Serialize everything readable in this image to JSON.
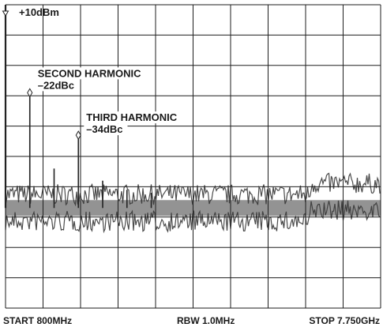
{
  "chart_data": {
    "type": "line",
    "title": "",
    "reference_level_label": "+10dBm",
    "x_unit": "GHz",
    "y_unit": "dBm",
    "xlim": [
      0.8,
      7.75
    ],
    "ylim": [
      -90,
      10
    ],
    "grid": true,
    "grid_divisions": {
      "x": 10,
      "y": 10
    },
    "noise_floor_dbm": -57,
    "series": [
      {
        "values": [
          {
            "x": 0.8,
            "y": 10
          },
          {
            "x": 1.25,
            "y": -19
          },
          {
            "x": 1.7,
            "y": -44
          },
          {
            "x": 2.15,
            "y": -33
          },
          {
            "x": 2.6,
            "y": -48
          },
          {
            "x": 3.05,
            "y": -51
          },
          {
            "x": 3.5,
            "y": -52
          }
        ]
      }
    ],
    "annotations": [
      {
        "lines": [
          "SECOND HARMONIC",
          "–22dBc"
        ],
        "x": 1.25,
        "y": -19
      },
      {
        "lines": [
          "THIRD HARMONIC",
          "–34dBc"
        ],
        "x": 2.15,
        "y": -33
      }
    ],
    "footer": {
      "start": "START 800MHz",
      "rbw": "RBW 1.0MHz",
      "stop": "STOP 7.750GHz"
    }
  }
}
